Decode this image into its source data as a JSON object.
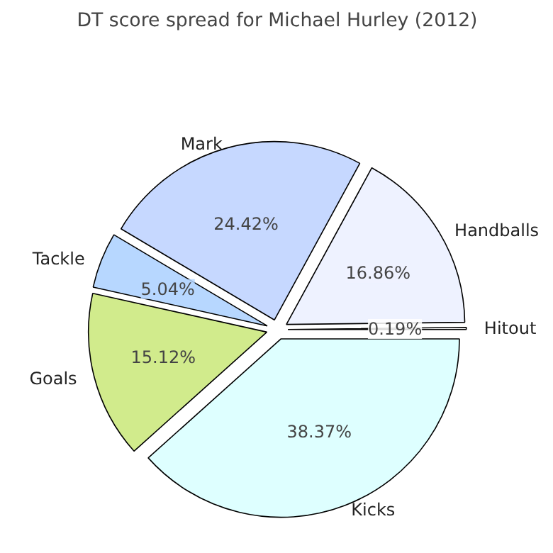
{
  "chart_data": {
    "type": "pie",
    "title": "DT score spread for Michael Hurley (2012)",
    "categories": [
      "Hitout",
      "Handballs",
      "Mark",
      "Tackle",
      "Goals",
      "Kicks"
    ],
    "values": [
      0.19,
      16.86,
      24.42,
      5.04,
      15.12,
      38.37
    ],
    "colors": [
      "#ffffff",
      "#eef2ff",
      "#c6d8ff",
      "#b7d7ff",
      "#d1eb8c",
      "#deffff"
    ],
    "value_labels": [
      "0.19%",
      "16.86%",
      "24.42%",
      "5.04%",
      "15.12%",
      "38.37%"
    ]
  }
}
